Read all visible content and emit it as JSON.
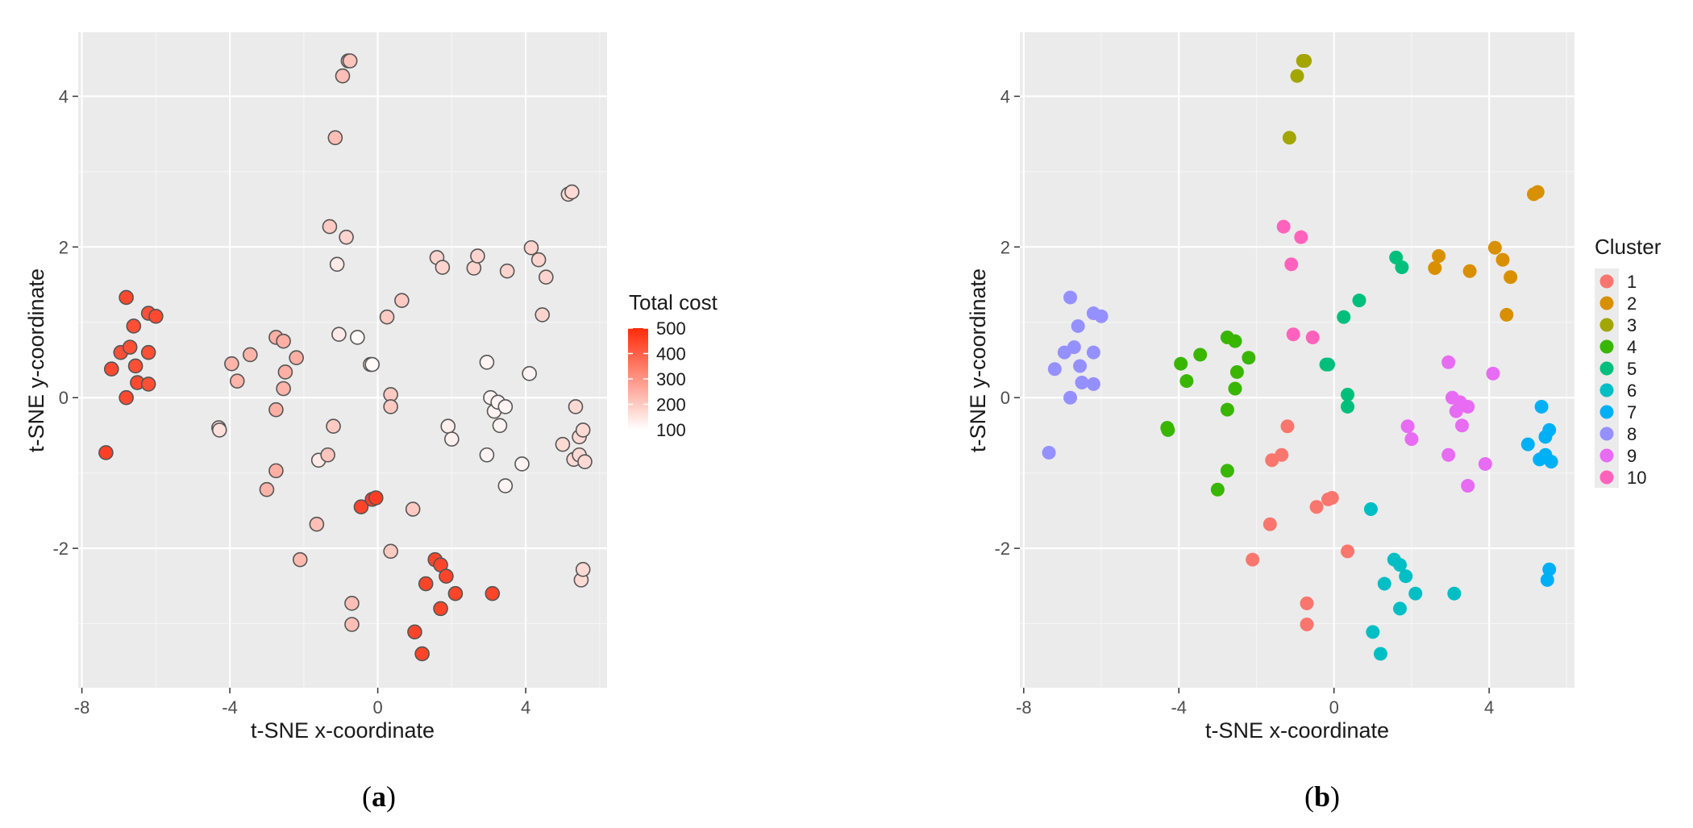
{
  "chart_data": [
    {
      "type": "scatter",
      "panel_label": "a",
      "xlabel": "t-SNE x-coordinate",
      "ylabel": "t-SNE y-coordinate",
      "xlim": [
        -8.1,
        6.2
      ],
      "ylim": [
        -3.85,
        4.85
      ],
      "xticks": [
        -8,
        -4,
        0,
        4
      ],
      "yticks": [
        -2,
        0,
        2,
        4
      ],
      "grid": true,
      "color_scale": {
        "title": "Total cost",
        "min": 100,
        "max": 500,
        "ticks": [
          500,
          400,
          300,
          200,
          100
        ],
        "low_color": "#ffffff",
        "high_color": "#ff2a0a"
      },
      "points": [
        {
          "x": -7.35,
          "y": -0.73,
          "v": 460
        },
        {
          "x": -7.2,
          "y": 0.38,
          "v": 440
        },
        {
          "x": -6.95,
          "y": 0.6,
          "v": 430
        },
        {
          "x": -6.8,
          "y": 1.33,
          "v": 440
        },
        {
          "x": -6.8,
          "y": 0.0,
          "v": 440
        },
        {
          "x": -6.7,
          "y": 0.67,
          "v": 430
        },
        {
          "x": -6.6,
          "y": 0.95,
          "v": 430
        },
        {
          "x": -6.55,
          "y": 0.42,
          "v": 430
        },
        {
          "x": -6.5,
          "y": 0.2,
          "v": 440
        },
        {
          "x": -6.2,
          "y": 1.12,
          "v": 430
        },
        {
          "x": -6.2,
          "y": 0.6,
          "v": 430
        },
        {
          "x": -6.2,
          "y": 0.18,
          "v": 430
        },
        {
          "x": -6.0,
          "y": 1.08,
          "v": 440
        },
        {
          "x": -4.3,
          "y": -0.4,
          "v": 160
        },
        {
          "x": -4.28,
          "y": -0.43,
          "v": 160
        },
        {
          "x": -3.95,
          "y": 0.45,
          "v": 240
        },
        {
          "x": -3.8,
          "y": 0.22,
          "v": 240
        },
        {
          "x": -3.45,
          "y": 0.57,
          "v": 240
        },
        {
          "x": -3.0,
          "y": -1.22,
          "v": 240
        },
        {
          "x": -2.75,
          "y": 0.8,
          "v": 250
        },
        {
          "x": -2.75,
          "y": -0.16,
          "v": 250
        },
        {
          "x": -2.75,
          "y": -0.97,
          "v": 250
        },
        {
          "x": -2.55,
          "y": 0.75,
          "v": 250
        },
        {
          "x": -2.55,
          "y": 0.12,
          "v": 240
        },
        {
          "x": -2.5,
          "y": 0.34,
          "v": 250
        },
        {
          "x": -2.2,
          "y": 0.53,
          "v": 250
        },
        {
          "x": -2.1,
          "y": -2.15,
          "v": 230
        },
        {
          "x": -1.65,
          "y": -1.68,
          "v": 220
        },
        {
          "x": -1.6,
          "y": -0.83,
          "v": 140
        },
        {
          "x": -1.35,
          "y": -0.76,
          "v": 210
        },
        {
          "x": -1.3,
          "y": 2.27,
          "v": 200
        },
        {
          "x": -1.2,
          "y": -0.38,
          "v": 200
        },
        {
          "x": -1.15,
          "y": 3.45,
          "v": 220
        },
        {
          "x": -1.1,
          "y": 1.77,
          "v": 140
        },
        {
          "x": -1.05,
          "y": 0.84,
          "v": 140
        },
        {
          "x": -0.95,
          "y": 4.27,
          "v": 220
        },
        {
          "x": -0.85,
          "y": 2.13,
          "v": 180
        },
        {
          "x": -0.8,
          "y": 4.47,
          "v": 210
        },
        {
          "x": -0.75,
          "y": 4.47,
          "v": 210
        },
        {
          "x": -0.7,
          "y": -2.73,
          "v": 220
        },
        {
          "x": -0.7,
          "y": -3.01,
          "v": 220
        },
        {
          "x": -0.55,
          "y": 0.8,
          "v": 110
        },
        {
          "x": -0.45,
          "y": -1.45,
          "v": 450
        },
        {
          "x": -0.2,
          "y": 0.44,
          "v": 120
        },
        {
          "x": -0.15,
          "y": 0.44,
          "v": 110
        },
        {
          "x": -0.15,
          "y": -1.35,
          "v": 460
        },
        {
          "x": -0.05,
          "y": -1.33,
          "v": 460
        },
        {
          "x": 0.25,
          "y": 1.07,
          "v": 200
        },
        {
          "x": 0.35,
          "y": -2.04,
          "v": 200
        },
        {
          "x": 0.35,
          "y": 0.04,
          "v": 200
        },
        {
          "x": 0.35,
          "y": -0.12,
          "v": 200
        },
        {
          "x": 0.65,
          "y": 1.29,
          "v": 200
        },
        {
          "x": 0.95,
          "y": -1.48,
          "v": 200
        },
        {
          "x": 1.0,
          "y": -3.11,
          "v": 450
        },
        {
          "x": 1.2,
          "y": -3.4,
          "v": 450
        },
        {
          "x": 1.3,
          "y": -2.47,
          "v": 450
        },
        {
          "x": 1.55,
          "y": -2.15,
          "v": 450
        },
        {
          "x": 1.6,
          "y": 1.86,
          "v": 180
        },
        {
          "x": 1.7,
          "y": -2.22,
          "v": 450
        },
        {
          "x": 1.7,
          "y": -2.8,
          "v": 450
        },
        {
          "x": 1.75,
          "y": 1.73,
          "v": 180
        },
        {
          "x": 1.85,
          "y": -2.37,
          "v": 450
        },
        {
          "x": 1.9,
          "y": -0.38,
          "v": 130
        },
        {
          "x": 2.0,
          "y": -0.55,
          "v": 130
        },
        {
          "x": 2.1,
          "y": -2.6,
          "v": 450
        },
        {
          "x": 2.6,
          "y": 1.72,
          "v": 180
        },
        {
          "x": 2.7,
          "y": 1.88,
          "v": 180
        },
        {
          "x": 2.95,
          "y": -0.76,
          "v": 120
        },
        {
          "x": 2.95,
          "y": 0.47,
          "v": 120
        },
        {
          "x": 3.05,
          "y": 0.0,
          "v": 120
        },
        {
          "x": 3.1,
          "y": -2.6,
          "v": 450
        },
        {
          "x": 3.15,
          "y": -0.18,
          "v": 120
        },
        {
          "x": 3.25,
          "y": -0.06,
          "v": 120
        },
        {
          "x": 3.3,
          "y": -0.37,
          "v": 120
        },
        {
          "x": 3.45,
          "y": -0.12,
          "v": 120
        },
        {
          "x": 3.45,
          "y": -1.17,
          "v": 120
        },
        {
          "x": 3.5,
          "y": 1.68,
          "v": 180
        },
        {
          "x": 3.9,
          "y": -0.88,
          "v": 120
        },
        {
          "x": 4.1,
          "y": 0.32,
          "v": 120
        },
        {
          "x": 4.15,
          "y": 1.99,
          "v": 180
        },
        {
          "x": 4.35,
          "y": 1.83,
          "v": 180
        },
        {
          "x": 4.45,
          "y": 1.1,
          "v": 180
        },
        {
          "x": 4.55,
          "y": 1.6,
          "v": 180
        },
        {
          "x": 5.0,
          "y": -0.62,
          "v": 170
        },
        {
          "x": 5.15,
          "y": 2.7,
          "v": 170
        },
        {
          "x": 5.25,
          "y": 2.73,
          "v": 170
        },
        {
          "x": 5.3,
          "y": -0.82,
          "v": 170
        },
        {
          "x": 5.35,
          "y": -0.12,
          "v": 170
        },
        {
          "x": 5.45,
          "y": -0.52,
          "v": 170
        },
        {
          "x": 5.45,
          "y": -0.76,
          "v": 170
        },
        {
          "x": 5.5,
          "y": -2.42,
          "v": 170
        },
        {
          "x": 5.55,
          "y": -0.43,
          "v": 170
        },
        {
          "x": 5.55,
          "y": -2.28,
          "v": 170
        },
        {
          "x": 5.6,
          "y": -0.85,
          "v": 170
        }
      ]
    },
    {
      "type": "scatter",
      "panel_label": "b",
      "xlabel": "t-SNE x-coordinate",
      "ylabel": "t-SNE y-coordinate",
      "xlim": [
        -8.1,
        6.2
      ],
      "ylim": [
        -3.85,
        4.85
      ],
      "xticks": [
        -8,
        -4,
        0,
        4
      ],
      "yticks": [
        -2,
        0,
        2,
        4
      ],
      "grid": true,
      "legend": {
        "title": "Cluster",
        "placement": "right",
        "entries": [
          {
            "label": "1",
            "color": "#F8766D"
          },
          {
            "label": "2",
            "color": "#D89000"
          },
          {
            "label": "3",
            "color": "#A3A500"
          },
          {
            "label": "4",
            "color": "#39B600"
          },
          {
            "label": "5",
            "color": "#00BF7D"
          },
          {
            "label": "6",
            "color": "#00BFC4"
          },
          {
            "label": "7",
            "color": "#00B0F6"
          },
          {
            "label": "8",
            "color": "#9590FF"
          },
          {
            "label": "9",
            "color": "#E76BF3"
          },
          {
            "label": "10",
            "color": "#FF62BC"
          }
        ]
      },
      "points": [
        {
          "x": -7.35,
          "y": -0.73,
          "c": 8
        },
        {
          "x": -7.2,
          "y": 0.38,
          "c": 8
        },
        {
          "x": -6.95,
          "y": 0.6,
          "c": 8
        },
        {
          "x": -6.8,
          "y": 1.33,
          "c": 8
        },
        {
          "x": -6.8,
          "y": 0.0,
          "c": 8
        },
        {
          "x": -6.7,
          "y": 0.67,
          "c": 8
        },
        {
          "x": -6.6,
          "y": 0.95,
          "c": 8
        },
        {
          "x": -6.55,
          "y": 0.42,
          "c": 8
        },
        {
          "x": -6.5,
          "y": 0.2,
          "c": 8
        },
        {
          "x": -6.2,
          "y": 1.12,
          "c": 8
        },
        {
          "x": -6.2,
          "y": 0.6,
          "c": 8
        },
        {
          "x": -6.2,
          "y": 0.18,
          "c": 8
        },
        {
          "x": -6.0,
          "y": 1.08,
          "c": 8
        },
        {
          "x": -4.3,
          "y": -0.4,
          "c": 4
        },
        {
          "x": -4.28,
          "y": -0.43,
          "c": 4
        },
        {
          "x": -3.95,
          "y": 0.45,
          "c": 4
        },
        {
          "x": -3.8,
          "y": 0.22,
          "c": 4
        },
        {
          "x": -3.45,
          "y": 0.57,
          "c": 4
        },
        {
          "x": -3.0,
          "y": -1.22,
          "c": 4
        },
        {
          "x": -2.75,
          "y": 0.8,
          "c": 4
        },
        {
          "x": -2.75,
          "y": -0.16,
          "c": 4
        },
        {
          "x": -2.75,
          "y": -0.97,
          "c": 4
        },
        {
          "x": -2.55,
          "y": 0.75,
          "c": 4
        },
        {
          "x": -2.55,
          "y": 0.12,
          "c": 4
        },
        {
          "x": -2.5,
          "y": 0.34,
          "c": 4
        },
        {
          "x": -2.2,
          "y": 0.53,
          "c": 4
        },
        {
          "x": -2.1,
          "y": -2.15,
          "c": 1
        },
        {
          "x": -1.65,
          "y": -1.68,
          "c": 1
        },
        {
          "x": -1.6,
          "y": -0.83,
          "c": 1
        },
        {
          "x": -1.35,
          "y": -0.76,
          "c": 1
        },
        {
          "x": -1.3,
          "y": 2.27,
          "c": 10
        },
        {
          "x": -1.2,
          "y": -0.38,
          "c": 1
        },
        {
          "x": -1.15,
          "y": 3.45,
          "c": 3
        },
        {
          "x": -1.1,
          "y": 1.77,
          "c": 10
        },
        {
          "x": -1.05,
          "y": 0.84,
          "c": 10
        },
        {
          "x": -0.95,
          "y": 4.27,
          "c": 3
        },
        {
          "x": -0.85,
          "y": 2.13,
          "c": 10
        },
        {
          "x": -0.8,
          "y": 4.47,
          "c": 3
        },
        {
          "x": -0.75,
          "y": 4.47,
          "c": 3
        },
        {
          "x": -0.7,
          "y": -2.73,
          "c": 1
        },
        {
          "x": -0.7,
          "y": -3.01,
          "c": 1
        },
        {
          "x": -0.55,
          "y": 0.8,
          "c": 10
        },
        {
          "x": -0.45,
          "y": -1.45,
          "c": 1
        },
        {
          "x": -0.2,
          "y": 0.44,
          "c": 5
        },
        {
          "x": -0.15,
          "y": 0.44,
          "c": 5
        },
        {
          "x": -0.15,
          "y": -1.35,
          "c": 1
        },
        {
          "x": -0.05,
          "y": -1.33,
          "c": 1
        },
        {
          "x": 0.25,
          "y": 1.07,
          "c": 5
        },
        {
          "x": 0.35,
          "y": -2.04,
          "c": 1
        },
        {
          "x": 0.35,
          "y": 0.04,
          "c": 5
        },
        {
          "x": 0.35,
          "y": -0.12,
          "c": 5
        },
        {
          "x": 0.65,
          "y": 1.29,
          "c": 5
        },
        {
          "x": 0.95,
          "y": -1.48,
          "c": 6
        },
        {
          "x": 1.0,
          "y": -3.11,
          "c": 6
        },
        {
          "x": 1.2,
          "y": -3.4,
          "c": 6
        },
        {
          "x": 1.3,
          "y": -2.47,
          "c": 6
        },
        {
          "x": 1.55,
          "y": -2.15,
          "c": 6
        },
        {
          "x": 1.6,
          "y": 1.86,
          "c": 5
        },
        {
          "x": 1.7,
          "y": -2.22,
          "c": 6
        },
        {
          "x": 1.7,
          "y": -2.8,
          "c": 6
        },
        {
          "x": 1.75,
          "y": 1.73,
          "c": 5
        },
        {
          "x": 1.85,
          "y": -2.37,
          "c": 6
        },
        {
          "x": 1.9,
          "y": -0.38,
          "c": 9
        },
        {
          "x": 2.0,
          "y": -0.55,
          "c": 9
        },
        {
          "x": 2.1,
          "y": -2.6,
          "c": 6
        },
        {
          "x": 2.6,
          "y": 1.72,
          "c": 2
        },
        {
          "x": 2.7,
          "y": 1.88,
          "c": 2
        },
        {
          "x": 2.95,
          "y": -0.76,
          "c": 9
        },
        {
          "x": 2.95,
          "y": 0.47,
          "c": 9
        },
        {
          "x": 3.05,
          "y": 0.0,
          "c": 9
        },
        {
          "x": 3.1,
          "y": -2.6,
          "c": 6
        },
        {
          "x": 3.15,
          "y": -0.18,
          "c": 9
        },
        {
          "x": 3.25,
          "y": -0.06,
          "c": 9
        },
        {
          "x": 3.3,
          "y": -0.37,
          "c": 9
        },
        {
          "x": 3.45,
          "y": -0.12,
          "c": 9
        },
        {
          "x": 3.45,
          "y": -1.17,
          "c": 9
        },
        {
          "x": 3.5,
          "y": 1.68,
          "c": 2
        },
        {
          "x": 3.9,
          "y": -0.88,
          "c": 9
        },
        {
          "x": 4.1,
          "y": 0.32,
          "c": 9
        },
        {
          "x": 4.15,
          "y": 1.99,
          "c": 2
        },
        {
          "x": 4.35,
          "y": 1.83,
          "c": 2
        },
        {
          "x": 4.45,
          "y": 1.1,
          "c": 2
        },
        {
          "x": 4.55,
          "y": 1.6,
          "c": 2
        },
        {
          "x": 5.0,
          "y": -0.62,
          "c": 7
        },
        {
          "x": 5.15,
          "y": 2.7,
          "c": 2
        },
        {
          "x": 5.25,
          "y": 2.73,
          "c": 2
        },
        {
          "x": 5.3,
          "y": -0.82,
          "c": 7
        },
        {
          "x": 5.35,
          "y": -0.12,
          "c": 7
        },
        {
          "x": 5.45,
          "y": -0.52,
          "c": 7
        },
        {
          "x": 5.45,
          "y": -0.76,
          "c": 7
        },
        {
          "x": 5.5,
          "y": -2.42,
          "c": 7
        },
        {
          "x": 5.55,
          "y": -0.43,
          "c": 7
        },
        {
          "x": 5.55,
          "y": -2.28,
          "c": 7
        },
        {
          "x": 5.6,
          "y": -0.85,
          "c": 7
        }
      ]
    }
  ]
}
